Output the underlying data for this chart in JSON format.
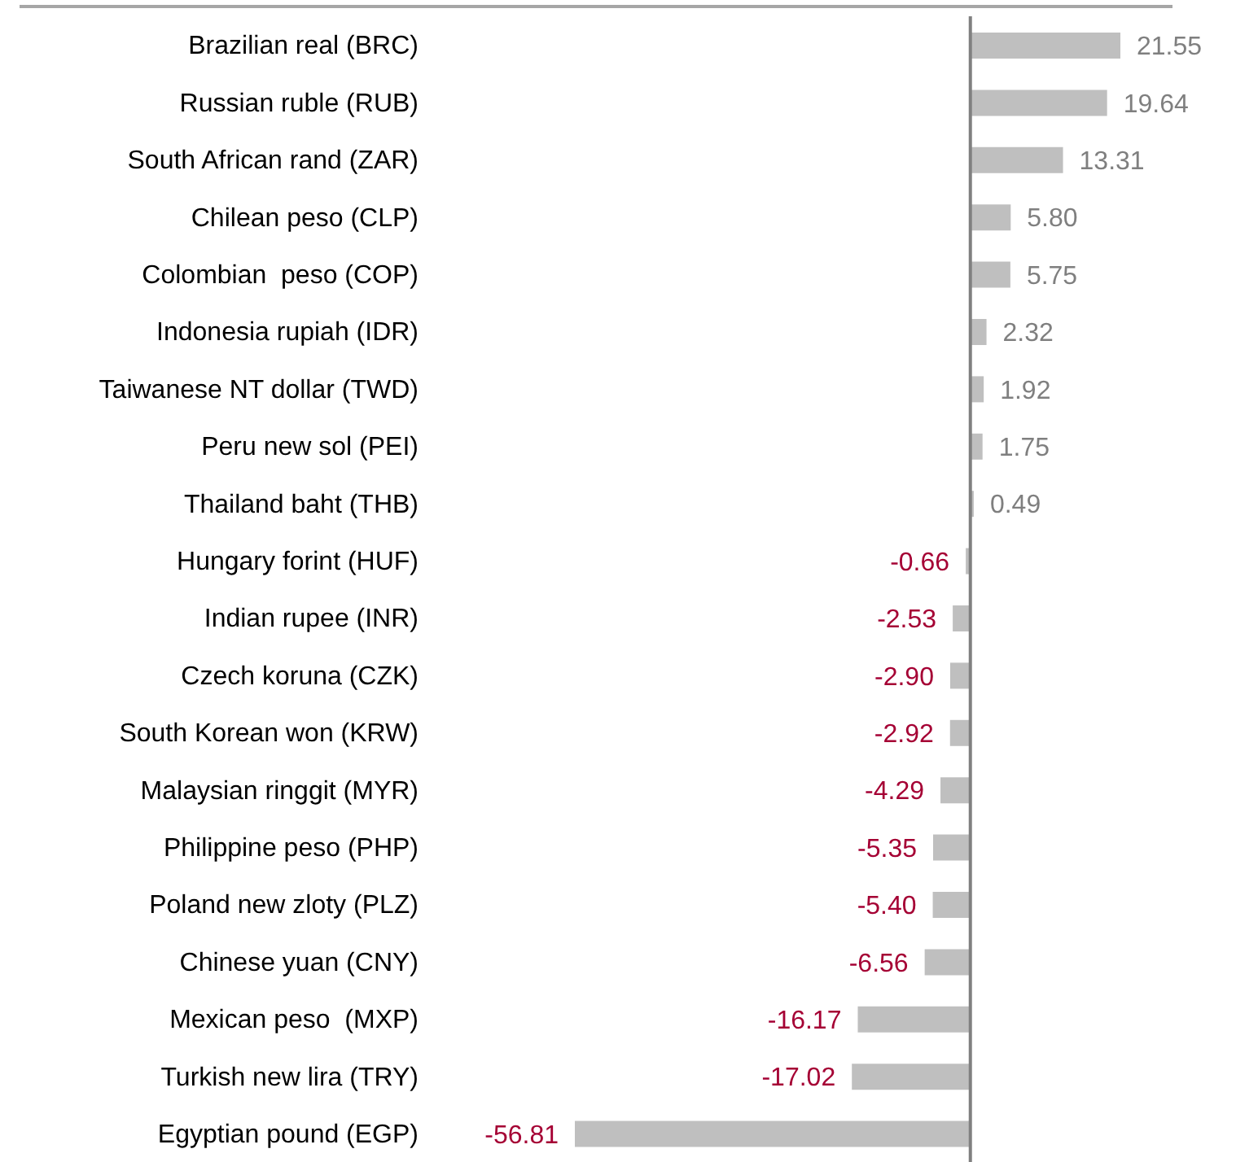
{
  "chart_data": {
    "type": "bar",
    "orientation": "horizontal",
    "tick_labels": "y",
    "categories": [
      "Brazilian real (BRC)",
      "Russian ruble (RUB)",
      "South African rand (ZAR)",
      "Chilean peso (CLP)",
      "Colombian  peso (COP)",
      "Indonesia rupiah (IDR)",
      "Taiwanese NT dollar (TWD)",
      "Peru new sol (PEI)",
      "Thailand baht (THB)",
      "Hungary forint (HUF)",
      "Indian rupee (INR)",
      "Czech koruna (CZK)",
      "South Korean won (KRW)",
      "Malaysian ringgit (MYR)",
      "Philippine peso (PHP)",
      "Poland new zloty (PLZ)",
      "Chinese yuan (CNY)",
      "Mexican peso  (MXP)",
      "Turkish new lira (TRY)",
      "Egyptian pound (EGP)"
    ],
    "values": [
      21.55,
      19.64,
      13.31,
      5.8,
      5.75,
      2.32,
      1.92,
      1.75,
      0.49,
      -0.66,
      -2.53,
      -2.9,
      -2.92,
      -4.29,
      -5.35,
      -5.4,
      -6.56,
      -16.17,
      -17.02,
      -56.81
    ],
    "value_labels": [
      "21.55",
      "19.64",
      "13.31",
      "5.80",
      "5.75",
      "2.32",
      "1.92",
      "1.75",
      "0.49",
      "-0.66",
      "-2.53",
      "-2.90",
      "-2.92",
      "-4.29",
      "-5.35",
      "-5.40",
      "-6.56",
      "-16.17",
      "-17.02",
      "-56.81"
    ],
    "color": "#bfbfbf"
  }
}
